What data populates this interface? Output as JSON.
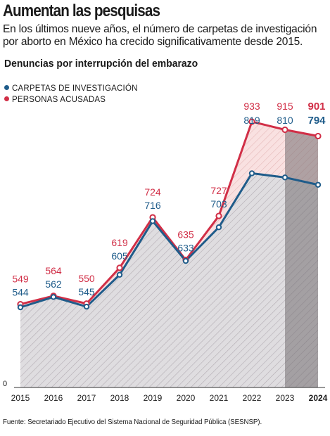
{
  "header": {
    "title": "Aumentan las pesquisas",
    "subtitle": "En los últimos nueve años, el número de carpetas de investigación por aborto en México ha crecido significativamente desde 2015."
  },
  "source": "Fuente: Secretariado Ejecutivo del Sistema Nacional de Seguridad Pública (SESNSP).",
  "chart_data": {
    "type": "area",
    "title": "Denuncias por interrupción del embarazo",
    "categories": [
      "2015",
      "2016",
      "2017",
      "2018",
      "2019",
      "2020",
      "2021",
      "2022",
      "2023",
      "2024"
    ],
    "series": [
      {
        "name": "CARPETAS DE INVESTIGACIÓN",
        "color": "#1f5c8a",
        "values": [
          544,
          562,
          545,
          605,
          716,
          633,
          703,
          819,
          810,
          794
        ]
      },
      {
        "name": "PERSONAS ACUSADAS",
        "color": "#d12f47",
        "values": [
          549,
          564,
          550,
          619,
          724,
          635,
          727,
          933,
          915,
          901
        ]
      }
    ],
    "y_axis_visible_tick": "0",
    "highlight_category": "2024",
    "grid": false,
    "legend_position": "top-left"
  }
}
